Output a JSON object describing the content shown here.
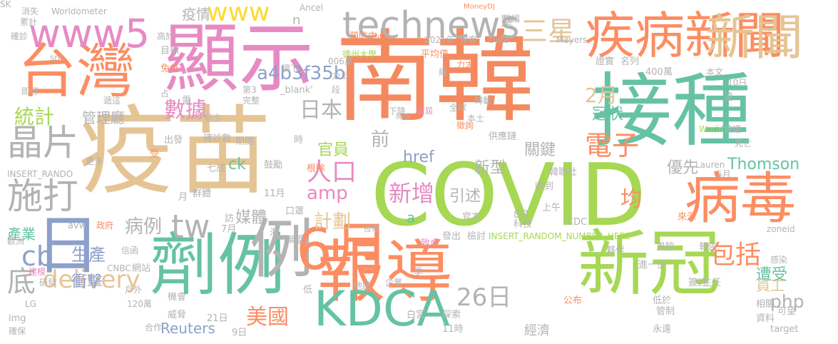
{
  "words": [
    {
      "text": "南韓",
      "color": "#F4895F"
    },
    {
      "text": "接種",
      "color": "#66C2A5"
    },
    {
      "text": "疫苗",
      "color": "#E5C494"
    },
    {
      "text": "COVID",
      "color": "#A6D854"
    },
    {
      "text": "顯示",
      "color": "#E78AC3"
    },
    {
      "text": "台灣",
      "color": "#FC8D62"
    },
    {
      "text": "新冠",
      "color": "#A6D854"
    },
    {
      "text": "報導",
      "color": "#FC8D62"
    },
    {
      "text": "劑例",
      "color": "#66C2A5"
    },
    {
      "text": "例",
      "color": "#B3B3B3"
    },
    {
      "text": "6月",
      "color": "#FC8D62"
    },
    {
      "text": "病毒",
      "color": "#FC8D62"
    },
    {
      "text": "疾病新聞",
      "color": "#FC8D62"
    },
    {
      "text": "新聞",
      "color": "#E5C494"
    },
    {
      "text": "KDCA",
      "color": "#66C2A5"
    },
    {
      "text": "日",
      "color": "#8DA0CB"
    },
    {
      "text": "technews",
      "color": "#B3B3B3"
    },
    {
      "text": "www5",
      "color": "#E78AC3"
    },
    {
      "text": "www",
      "color": "#FFD92F"
    },
    {
      "text": "晶片",
      "color": "#B3B3B3"
    },
    {
      "text": "施打",
      "color": "#B3B3B3"
    },
    {
      "text": "統計",
      "color": "#A6D854"
    },
    {
      "text": "數據",
      "color": "#E78AC3"
    },
    {
      "text": "日本",
      "color": "#B3B3B3"
    },
    {
      "text": "2月",
      "color": "#E5C494"
    },
    {
      "text": "三星",
      "color": "#E5C494"
    },
    {
      "text": "電子",
      "color": "#FC8D62"
    },
    {
      "text": "冠狀",
      "color": "#66C2A5"
    },
    {
      "text": "人口",
      "color": "#E78AC3"
    },
    {
      "text": "新增",
      "color": "#E78AC3"
    },
    {
      "text": "均",
      "color": "#FC8D62"
    },
    {
      "text": "包括",
      "color": "#FC8D62"
    },
    {
      "text": "26日",
      "color": "#B3B3B3"
    },
    {
      "text": "delivery",
      "color": "#E5C494"
    },
    {
      "text": "美國",
      "color": "#FC8D62"
    },
    {
      "text": "tw",
      "color": "#B3B3B3"
    },
    {
      "text": "amp",
      "color": "#E78AC3"
    },
    {
      "text": "計劃",
      "color": "#E5C494"
    },
    {
      "text": "媒體",
      "color": "#B3B3B3"
    },
    {
      "text": "病例",
      "color": "#B3B3B3"
    },
    {
      "text": "產業",
      "color": "#66C2A5"
    },
    {
      "text": "cb",
      "color": "#8DA0CB"
    },
    {
      "text": "生產",
      "color": "#8DA0CB"
    },
    {
      "text": "衝擊",
      "color": "#8DA0CB"
    },
    {
      "text": "底",
      "color": "#B3B3B3"
    },
    {
      "text": "a4b3f35b",
      "color": "#8DA0CB"
    },
    {
      "text": "疫情",
      "color": "#B3B3B3"
    },
    {
      "text": "管理廳",
      "color": "#B3B3B3"
    },
    {
      "text": "ck",
      "color": "#66C2A5"
    },
    {
      "text": "官員",
      "color": "#A6D854"
    },
    {
      "text": "前",
      "color": "#B3B3B3"
    },
    {
      "text": "href",
      "color": "#8DA0CB"
    },
    {
      "text": "新型",
      "color": "#B3B3B3"
    },
    {
      "text": "關鍵",
      "color": "#B3B3B3"
    },
    {
      "text": "引述",
      "color": "#B3B3B3"
    },
    {
      "text": "優先",
      "color": "#B3B3B3"
    },
    {
      "text": "Thomson",
      "color": "#66C2A5"
    },
    {
      "text": "遭受",
      "color": "#66C2A5"
    },
    {
      "text": "員工",
      "color": "#E5C494"
    },
    {
      "text": "php",
      "color": "#B3B3B3"
    },
    {
      "text": "Reuters",
      "color": "#8DA0CB"
    },
    {
      "text": "經濟",
      "color": "#B3B3B3"
    },
    {
      "text": "a",
      "color": "#66C2A5"
    },
    {
      "text": "n",
      "color": "#B3B3B3"
    },
    {
      "text": "Worldometer",
      "color": "#B3B3B3"
    },
    {
      "text": "MoneyDJ",
      "color": "#FC8D62"
    },
    {
      "text": "INSERT_RANDO",
      "color": "#B3B3B3"
    },
    {
      "text": "INSERT_RANDOM_NUMBER_HERE'",
      "color": "#A6D854"
    },
    {
      "text": "zoneid",
      "color": "#B3B3B3"
    },
    {
      "text": "預防中心",
      "color": "#FC8D62"
    },
    {
      "text": "2021年",
      "color": "#B3B3B3"
    },
    {
      "text": "旅客",
      "color": "#B3B3B3"
    },
    {
      "text": "Data",
      "color": "#B3B3B3"
    },
    {
      "text": "整",
      "color": "#B3B3B3"
    },
    {
      "text": "Meyers",
      "color": "#B3B3B3"
    },
    {
      "text": "大幅",
      "color": "#B3B3B3"
    },
    {
      "text": "下降",
      "color": "#B3B3B3"
    },
    {
      "text": "德州大學",
      "color": "#A6D854"
    },
    {
      "text": "平均值",
      "color": "#FC8D62"
    },
    {
      "text": "力求",
      "color": "#FC8D62"
    },
    {
      "text": "006萬",
      "color": "#B3B3B3"
    },
    {
      "text": "力士",
      "color": "#B3B3B3"
    },
    {
      "text": "摘下",
      "color": "#B3B3B3"
    },
    {
      "text": "段",
      "color": "#B3B3B3"
    },
    {
      "text": "總",
      "color": "#B3B3B3"
    },
    {
      "text": "證實",
      "color": "#B3B3B3"
    },
    {
      "text": "名列",
      "color": "#B3B3B3"
    },
    {
      "text": "400萬",
      "color": "#B3B3B3"
    },
    {
      "text": "本文",
      "color": "#B3B3B3"
    },
    {
      "text": "10日",
      "color": "#B3B3B3"
    },
    {
      "text": "達",
      "color": "#B3B3B3"
    },
    {
      "text": "World",
      "color": "#A6D854"
    },
    {
      "text": "協議",
      "color": "#B3B3B3"
    },
    {
      "text": "死亡",
      "color": "#B3B3B3"
    },
    {
      "text": "Lauren",
      "color": "#B3B3B3"
    },
    {
      "text": "5月",
      "color": "#B3B3B3"
    },
    {
      "text": "轉載",
      "color": "#B3B3B3"
    },
    {
      "text": "全球",
      "color": "#B3B3B3"
    },
    {
      "text": "本土",
      "color": "#B3B3B3"
    },
    {
      "text": "首屆",
      "color": "#E78AC3"
    },
    {
      "text": "降低",
      "color": "#B3B3B3"
    },
    {
      "text": "徵詢",
      "color": "#FC8D62"
    },
    {
      "text": "供應鏈",
      "color": "#B3B3B3"
    },
    {
      "text": "韓聯社",
      "color": "#B3B3B3"
    },
    {
      "text": "收到",
      "color": "#B3B3B3"
    },
    {
      "text": "上午",
      "color": "#B3B3B3"
    },
    {
      "text": "CDC",
      "color": "#B3B3B3"
    },
    {
      "text": "8日",
      "color": "#B3B3B3"
    },
    {
      "text": "科技",
      "color": "#B3B3B3"
    },
    {
      "text": "官方",
      "color": "#B3B3B3"
    },
    {
      "text": "檢討",
      "color": "#B3B3B3"
    },
    {
      "text": "來源",
      "color": "#FC8D62"
    },
    {
      "text": "風險",
      "color": "#B3B3B3"
    },
    {
      "text": "報告",
      "color": "#B3B3B3"
    },
    {
      "text": "夥伴",
      "color": "#B3B3B3"
    },
    {
      "text": "進一步",
      "color": "#B3B3B3"
    },
    {
      "text": "感染",
      "color": "#B3B3B3"
    },
    {
      "text": "簽訂",
      "color": "#B3B3B3"
    },
    {
      "text": "主任",
      "color": "#B3B3B3"
    },
    {
      "text": "低於",
      "color": "#B3B3B3"
    },
    {
      "text": "管制",
      "color": "#B3B3B3"
    },
    {
      "text": "相關",
      "color": "#B3B3B3"
    },
    {
      "text": "可望",
      "color": "#B3B3B3"
    },
    {
      "text": "資料",
      "color": "#B3B3B3"
    },
    {
      "text": "target",
      "color": "#B3B3B3"
    },
    {
      "text": "永遠",
      "color": "#B3B3B3"
    },
    {
      "text": "公布",
      "color": "#FC8D62"
    },
    {
      "text": "白宮",
      "color": "#B3B3B3"
    },
    {
      "text": "探索",
      "color": "#B3B3B3"
    },
    {
      "text": "11時",
      "color": "#B3B3B3"
    },
    {
      "text": "致命",
      "color": "#E78AC3"
    },
    {
      "text": "發出",
      "color": "#B3B3B3"
    },
    {
      "text": "季",
      "color": "#B3B3B3"
    },
    {
      "text": "企業",
      "color": "#B3B3B3"
    },
    {
      "text": "地區",
      "color": "#B3B3B3"
    },
    {
      "text": "低",
      "color": "#B3B3B3"
    },
    {
      "text": "授權",
      "color": "#B3B3B3"
    },
    {
      "text": "口罩",
      "color": "#B3B3B3"
    },
    {
      "text": "21日",
      "color": "#B3B3B3"
    },
    {
      "text": "9日",
      "color": "#B3B3B3"
    },
    {
      "text": "威脅",
      "color": "#B3B3B3"
    },
    {
      "text": "機會",
      "color": "#B3B3B3"
    },
    {
      "text": "11月",
      "color": "#B3B3B3"
    },
    {
      "text": "聯盟",
      "color": "#B3B3B3"
    },
    {
      "text": "海",
      "color": "#B3B3B3"
    },
    {
      "text": "7月",
      "color": "#B3B3B3"
    },
    {
      "text": "訪",
      "color": "#B3B3B3"
    },
    {
      "text": "鼓勵",
      "color": "#B3B3B3"
    },
    {
      "text": "七成",
      "color": "#B3B3B3"
    },
    {
      "text": "群體",
      "color": "#B3B3B3"
    },
    {
      "text": "月",
      "color": "#B3B3B3"
    },
    {
      "text": "期間",
      "color": "#B3B3B3"
    },
    {
      "text": "確診數",
      "color": "#B3B3B3"
    },
    {
      "text": "出發",
      "color": "#B3B3B3"
    },
    {
      "text": "受",
      "color": "#FC8D62"
    },
    {
      "text": "更多",
      "color": "#B3B3B3"
    },
    {
      "text": "根除",
      "color": "#FC8D62"
    },
    {
      "text": "時",
      "color": "#B3B3B3"
    },
    {
      "text": "完整",
      "color": "#B3B3B3"
    },
    {
      "text": "第3",
      "color": "#B3B3B3"
    },
    {
      "text": "_blank'",
      "color": "#B3B3B3"
    },
    {
      "text": "需",
      "color": "#B3B3B3"
    },
    {
      "text": "至少",
      "color": "#B3B3B3"
    },
    {
      "text": "占",
      "color": "#B3B3B3"
    },
    {
      "text": "遞這",
      "color": "#B3B3B3"
    },
    {
      "text": "免疫",
      "color": "#FC8D62"
    },
    {
      "text": "目標",
      "color": "#B3B3B3"
    },
    {
      "text": "高於",
      "color": "#B3B3B3"
    },
    {
      "text": "src",
      "color": "#B3B3B3"
    },
    {
      "text": "Ancel",
      "color": "#B3B3B3"
    },
    {
      "text": "確診",
      "color": "#B3B3B3"
    },
    {
      "text": "消失",
      "color": "#B3B3B3"
    },
    {
      "text": "累計",
      "color": "#B3B3B3"
    },
    {
      "text": "即可",
      "color": "#B3B3B3"
    },
    {
      "text": "avw",
      "color": "#B3B3B3"
    },
    {
      "text": "政府",
      "color": "#FC8D62"
    },
    {
      "text": "信函",
      "color": "#B3B3B3"
    },
    {
      "text": "歐洲",
      "color": "#B3B3B3"
    },
    {
      "text": "建模",
      "color": "#E78AC3"
    },
    {
      "text": "CNBC",
      "color": "#B3B3B3"
    },
    {
      "text": "研發",
      "color": "#B3B3B3"
    },
    {
      "text": "網站",
      "color": "#B3B3B3"
    },
    {
      "text": "戶外",
      "color": "#B3B3B3"
    },
    {
      "text": "120萬",
      "color": "#B3B3B3"
    },
    {
      "text": "LG",
      "color": "#B3B3B3"
    },
    {
      "text": "img",
      "color": "#B3B3B3"
    },
    {
      "text": "合作",
      "color": "#B3B3B3"
    },
    {
      "text": "確保",
      "color": "#B3B3B3"
    },
    {
      "text": "SK",
      "color": "#B3B3B3"
    }
  ]
}
